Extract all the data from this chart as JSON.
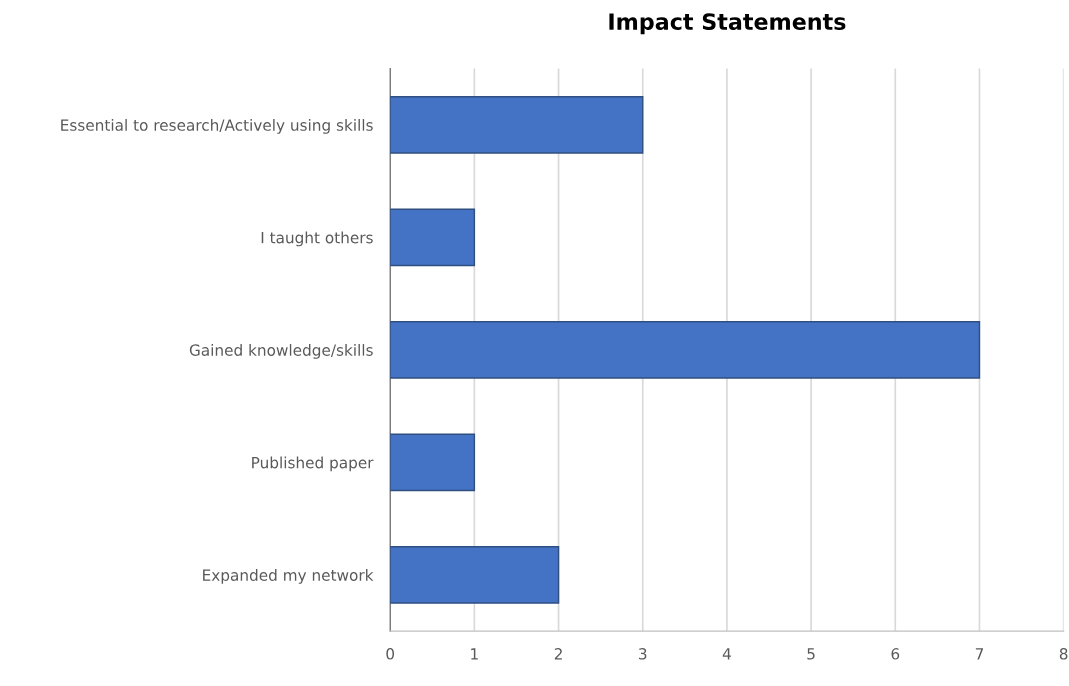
{
  "chart_data": {
    "type": "bar",
    "title": "Impact Statements",
    "orientation": "horizontal",
    "categories": [
      "Essential to research/Actively using skills",
      "I taught others",
      "Gained knowledge/skills",
      "Published paper",
      "Expanded my network"
    ],
    "values": [
      3,
      1,
      7,
      1,
      2
    ],
    "color": "#4472c4",
    "xlim": [
      0,
      8
    ],
    "xticks": [
      0,
      1,
      2,
      3,
      4,
      5,
      6,
      7,
      8
    ],
    "grid": "x"
  }
}
